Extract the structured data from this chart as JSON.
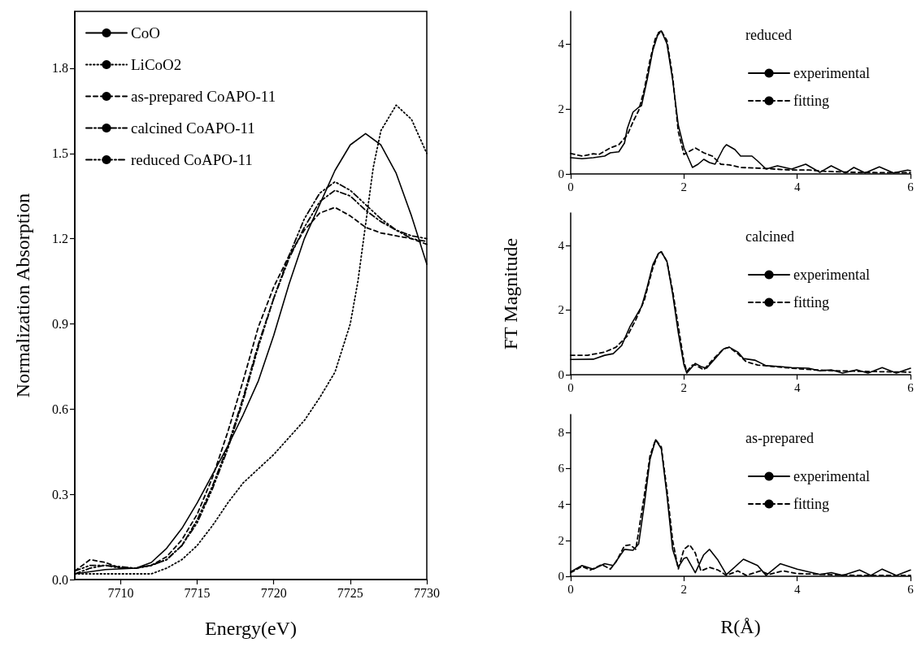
{
  "chart_data": [
    {
      "type": "line",
      "xlabel": "Energy(eV)",
      "ylabel": "Normalization Absorption",
      "xlim": [
        7707,
        7730
      ],
      "xticks": [
        7710,
        7715,
        7720,
        7725,
        7730
      ],
      "ylim": [
        0,
        2.0
      ],
      "yticks": [
        {
          "value": 0,
          "label": "0.0"
        },
        {
          "value": 0.3,
          "label": "0.3"
        },
        {
          "value": 0.6,
          "label": "0.6"
        },
        {
          "value": 0.9,
          "label": "0.9"
        },
        {
          "value": 1.2,
          "label": "1.2"
        },
        {
          "value": 1.5,
          "label": "1.5"
        },
        {
          "value": 1.8,
          "label": "1.8"
        }
      ],
      "legend": "top left",
      "grid": false,
      "marker": "none",
      "series": [
        {
          "name": "CoO",
          "color": "#000000",
          "line_style": "solid",
          "x": [
            7707,
            7709,
            7711,
            7712,
            7713,
            7714,
            7715,
            7716,
            7717,
            7718,
            7719,
            7720,
            7721,
            7722,
            7723,
            7724,
            7725,
            7726,
            7727,
            7728,
            7729,
            7730
          ],
          "values": [
            0.02,
            0.035,
            0.04,
            0.06,
            0.11,
            0.18,
            0.27,
            0.37,
            0.47,
            0.58,
            0.7,
            0.86,
            1.04,
            1.2,
            1.32,
            1.44,
            1.53,
            1.57,
            1.53,
            1.43,
            1.28,
            1.11
          ]
        },
        {
          "name": "LiCoO2",
          "color": "#000000",
          "line_style": "dotted",
          "x": [
            7707,
            7710,
            7712,
            7713,
            7714,
            7715,
            7716,
            7717,
            7718,
            7719,
            7720,
            7721,
            7722,
            7723,
            7724,
            7725,
            7725.5,
            7726,
            7726.5,
            7727,
            7728,
            7729,
            7730
          ],
          "values": [
            0.02,
            0.02,
            0.02,
            0.04,
            0.07,
            0.12,
            0.19,
            0.27,
            0.34,
            0.39,
            0.44,
            0.5,
            0.56,
            0.64,
            0.73,
            0.9,
            1.05,
            1.25,
            1.45,
            1.58,
            1.67,
            1.62,
            1.5
          ]
        },
        {
          "name": "as-prepared CoAPO-11",
          "color": "#000000",
          "line_style": "dashed",
          "x": [
            7707,
            7708,
            7709,
            7710,
            7711,
            7712,
            7713,
            7714,
            7715,
            7716,
            7717,
            7718,
            7719,
            7720,
            7721,
            7722,
            7723,
            7724,
            7725,
            7726,
            7727,
            7728,
            7729,
            7730
          ],
          "values": [
            0.03,
            0.07,
            0.06,
            0.04,
            0.04,
            0.05,
            0.08,
            0.14,
            0.23,
            0.36,
            0.52,
            0.7,
            0.89,
            1.03,
            1.14,
            1.23,
            1.29,
            1.31,
            1.28,
            1.24,
            1.22,
            1.21,
            1.2,
            1.18
          ]
        },
        {
          "name": "calcined CoAPO-11",
          "color": "#000000",
          "line_style": "dashdot",
          "x": [
            7707,
            7708,
            7709,
            7710,
            7711,
            7712,
            7713,
            7714,
            7715,
            7716,
            7717,
            7718,
            7719,
            7720,
            7721,
            7722,
            7723,
            7724,
            7725,
            7726,
            7727,
            7728,
            7729,
            7730
          ],
          "values": [
            0.02,
            0.04,
            0.05,
            0.045,
            0.04,
            0.05,
            0.07,
            0.12,
            0.21,
            0.33,
            0.47,
            0.64,
            0.83,
            0.99,
            1.13,
            1.24,
            1.33,
            1.37,
            1.35,
            1.3,
            1.26,
            1.23,
            1.21,
            1.2
          ]
        },
        {
          "name": "reduced CoAPO-11",
          "color": "#000000",
          "line_style": "dashdotdot",
          "x": [
            7707,
            7708,
            7709,
            7710,
            7711,
            7712,
            7713,
            7714,
            7715,
            7716,
            7717,
            7718,
            7719,
            7720,
            7721,
            7722,
            7723,
            7724,
            7725,
            7726,
            7727,
            7728,
            7729,
            7730
          ],
          "values": [
            0.03,
            0.05,
            0.05,
            0.04,
            0.04,
            0.05,
            0.07,
            0.12,
            0.2,
            0.32,
            0.46,
            0.63,
            0.82,
            0.99,
            1.14,
            1.27,
            1.36,
            1.4,
            1.37,
            1.32,
            1.27,
            1.23,
            1.2,
            1.19
          ]
        }
      ]
    },
    {
      "type": "line",
      "legend_title": "reduced",
      "xlim": [
        0,
        6
      ],
      "xticks": [
        0,
        2,
        4,
        6
      ],
      "ylim": [
        0,
        5
      ],
      "yticks": [
        0,
        2,
        4
      ],
      "legend": "right",
      "grid": false,
      "marker": "none",
      "series": [
        {
          "name": "experimental",
          "color": "#000000",
          "line_style": "solid",
          "x": [
            0,
            0.2,
            0.4,
            0.6,
            0.7,
            0.85,
            0.95,
            1.0,
            1.1,
            1.2,
            1.25,
            1.35,
            1.45,
            1.55,
            1.6,
            1.7,
            1.8,
            1.9,
            2.0,
            2.1,
            2.15,
            2.25,
            2.35,
            2.45,
            2.55,
            2.7,
            2.75,
            2.9,
            3.0,
            3.2,
            3.3,
            3.45,
            3.65,
            3.9,
            4.15,
            4.4,
            4.6,
            4.85,
            5.0,
            5.2,
            5.45,
            5.7,
            5.95,
            6.0
          ],
          "values": [
            0.5,
            0.47,
            0.5,
            0.55,
            0.65,
            0.68,
            0.95,
            1.4,
            1.9,
            2.05,
            2.1,
            2.9,
            3.8,
            4.35,
            4.4,
            4.0,
            2.9,
            1.5,
            0.8,
            0.4,
            0.2,
            0.3,
            0.45,
            0.35,
            0.3,
            0.8,
            0.9,
            0.75,
            0.55,
            0.55,
            0.4,
            0.15,
            0.25,
            0.15,
            0.3,
            0.05,
            0.25,
            0.03,
            0.2,
            0.03,
            0.22,
            0.03,
            0.12,
            0.1
          ]
        },
        {
          "name": "fitting",
          "color": "#000000",
          "line_style": "dashed",
          "x": [
            0,
            0.2,
            0.4,
            0.5,
            0.7,
            0.85,
            1.0,
            1.1,
            1.2,
            1.3,
            1.4,
            1.5,
            1.6,
            1.7,
            1.8,
            1.9,
            2.0,
            2.1,
            2.2,
            2.35,
            2.5,
            2.65,
            2.8,
            3.0,
            3.3,
            3.6,
            3.9,
            4.2,
            4.5,
            5.0,
            5.5,
            6.0
          ],
          "values": [
            0.63,
            0.55,
            0.62,
            0.6,
            0.8,
            0.9,
            1.2,
            1.6,
            1.95,
            2.6,
            3.5,
            4.2,
            4.4,
            4.1,
            3.0,
            1.3,
            0.6,
            0.7,
            0.8,
            0.65,
            0.55,
            0.3,
            0.28,
            0.2,
            0.18,
            0.15,
            0.12,
            0.12,
            0.08,
            0.05,
            0.04,
            0.04
          ]
        }
      ]
    },
    {
      "type": "line",
      "legend_title": "calcined",
      "ylabel": "FT Magnitude",
      "xlim": [
        0,
        6
      ],
      "xticks": [
        0,
        2,
        4,
        6
      ],
      "ylim": [
        0,
        5
      ],
      "yticks": [
        0,
        2,
        4
      ],
      "legend": "right",
      "grid": false,
      "marker": "none",
      "series": [
        {
          "name": "experimental",
          "color": "#000000",
          "line_style": "solid",
          "x": [
            0,
            0.4,
            0.6,
            0.75,
            0.9,
            1.05,
            1.15,
            1.25,
            1.35,
            1.45,
            1.55,
            1.6,
            1.7,
            1.8,
            1.9,
            2.0,
            2.05,
            2.1,
            2.2,
            2.3,
            2.4,
            2.55,
            2.7,
            2.8,
            2.95,
            3.05,
            3.25,
            3.45,
            3.7,
            3.9,
            4.2,
            4.4,
            4.6,
            4.8,
            5.05,
            5.25,
            5.5,
            5.75,
            6.0
          ],
          "values": [
            0.47,
            0.48,
            0.6,
            0.65,
            0.9,
            1.5,
            1.8,
            2.1,
            2.7,
            3.4,
            3.75,
            3.8,
            3.5,
            2.5,
            1.3,
            0.3,
            0.05,
            0.15,
            0.35,
            0.25,
            0.2,
            0.5,
            0.8,
            0.85,
            0.7,
            0.5,
            0.45,
            0.28,
            0.25,
            0.22,
            0.2,
            0.12,
            0.15,
            0.05,
            0.15,
            0.05,
            0.22,
            0.05,
            0.2
          ]
        },
        {
          "name": "fitting",
          "color": "#000000",
          "line_style": "dashed",
          "x": [
            0,
            0.3,
            0.6,
            0.8,
            1.0,
            1.15,
            1.3,
            1.45,
            1.55,
            1.6,
            1.7,
            1.8,
            1.9,
            2.0,
            2.05,
            2.15,
            2.2,
            2.35,
            2.5,
            2.7,
            2.8,
            2.95,
            3.1,
            3.3,
            3.6,
            3.9,
            4.3,
            4.7,
            5.2,
            6.0
          ],
          "values": [
            0.6,
            0.6,
            0.7,
            0.85,
            1.2,
            1.7,
            2.3,
            3.3,
            3.75,
            3.8,
            3.5,
            2.6,
            1.5,
            0.4,
            0.1,
            0.3,
            0.3,
            0.15,
            0.45,
            0.8,
            0.85,
            0.65,
            0.4,
            0.3,
            0.25,
            0.2,
            0.15,
            0.12,
            0.1,
            0.08
          ]
        }
      ]
    },
    {
      "type": "line",
      "legend_title": "as-prepared",
      "xlabel": "R(Å)",
      "xlim": [
        0,
        6
      ],
      "xticks": [
        0,
        2,
        4,
        6
      ],
      "ylim": [
        0,
        9
      ],
      "yticks": [
        0,
        2,
        4,
        6,
        8
      ],
      "legend": "right",
      "grid": false,
      "marker": "none",
      "series": [
        {
          "name": "experimental",
          "color": "#000000",
          "line_style": "solid",
          "x": [
            0,
            0.2,
            0.4,
            0.6,
            0.75,
            0.95,
            1.1,
            1.2,
            1.3,
            1.4,
            1.5,
            1.6,
            1.7,
            1.8,
            1.9,
            2.0,
            2.05,
            2.2,
            2.35,
            2.45,
            2.6,
            2.75,
            3.05,
            3.3,
            3.45,
            3.7,
            4.0,
            4.2,
            4.4,
            4.6,
            4.8,
            5.1,
            5.3,
            5.5,
            5.75,
            6.0
          ],
          "values": [
            0.25,
            0.6,
            0.4,
            0.7,
            0.6,
            1.5,
            1.45,
            1.8,
            4.0,
            6.5,
            7.6,
            7.1,
            4.5,
            1.5,
            0.5,
            1.0,
            1.05,
            0.2,
            1.2,
            1.5,
            0.9,
            0.1,
            0.95,
            0.6,
            0.05,
            0.7,
            0.4,
            0.25,
            0.1,
            0.2,
            0.05,
            0.35,
            0.05,
            0.4,
            0.05,
            0.35
          ]
        },
        {
          "name": "fitting",
          "color": "#000000",
          "line_style": "dashed",
          "x": [
            0,
            0.2,
            0.35,
            0.55,
            0.7,
            0.8,
            0.95,
            1.05,
            1.15,
            1.3,
            1.4,
            1.5,
            1.6,
            1.7,
            1.8,
            1.9,
            2.0,
            2.1,
            2.2,
            2.3,
            2.45,
            2.6,
            2.75,
            2.95,
            3.1,
            3.35,
            3.5,
            3.75,
            4.0,
            4.5,
            5.0,
            6.0
          ],
          "values": [
            0.2,
            0.55,
            0.35,
            0.65,
            0.4,
            0.8,
            1.7,
            1.75,
            1.5,
            4.5,
            6.7,
            7.6,
            7.2,
            4.8,
            2.0,
            0.4,
            1.5,
            1.75,
            1.3,
            0.3,
            0.5,
            0.35,
            0.05,
            0.3,
            0.05,
            0.3,
            0.1,
            0.3,
            0.15,
            0.1,
            0.05,
            0.05
          ]
        }
      ]
    }
  ]
}
